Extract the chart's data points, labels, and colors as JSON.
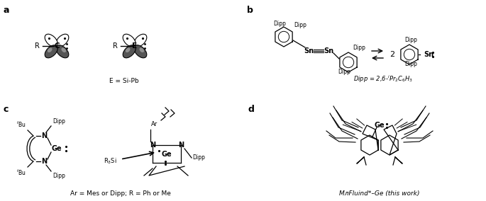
{
  "background_color": "#ffffff",
  "panel_labels": [
    "a",
    "b",
    "c",
    "d"
  ],
  "label_a_text": "E = Si-Pb",
  "label_b_text": "Dipp = 2,6-ʲPr₂C₆H₃",
  "label_c_text": "Ar = Mes or Dipp; R = Ph or Me",
  "label_d_text": "MᴫFluind*–Ge (this work)"
}
